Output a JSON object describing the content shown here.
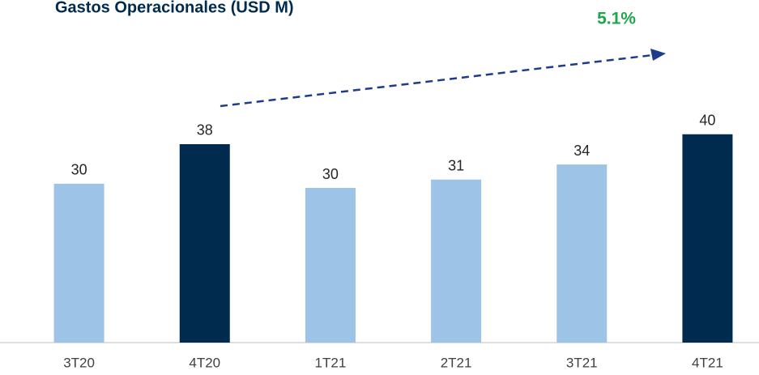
{
  "chart_data": {
    "type": "bar",
    "title": "Gastos Operacionales (USD M)",
    "annotation": "5.1%",
    "categories": [
      "3T20",
      "4T20",
      "1T21",
      "2T21",
      "3T21",
      "4T21"
    ],
    "values": [
      30.5,
      38.1,
      29.7,
      31.3,
      34.2,
      40.0
    ],
    "value_labels": [
      "30",
      "38",
      "30",
      "31",
      "34",
      "40"
    ],
    "colors": [
      "#9dc3e6",
      "#002b4e",
      "#9dc3e6",
      "#9dc3e6",
      "#9dc3e6",
      "#002b4e"
    ],
    "ylim": [
      0,
      65
    ]
  }
}
